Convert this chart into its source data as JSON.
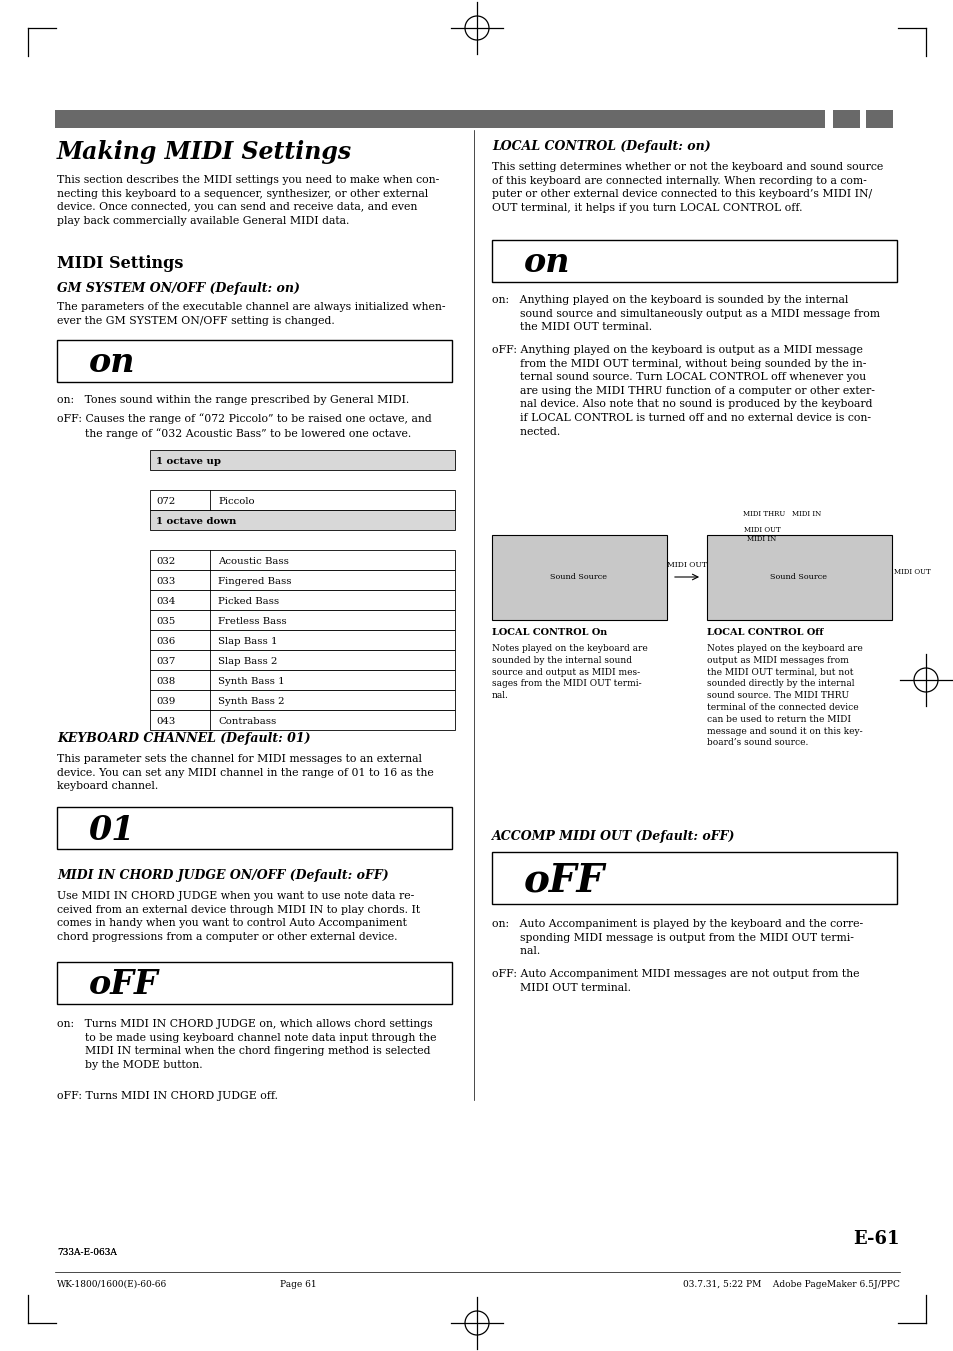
{
  "bg_color": "#ffffff",
  "page_width": 9.54,
  "page_height": 13.51,
  "header_bar_color": "#696969",
  "title": "Making MIDI Settings",
  "intro_text": "This section describes the MIDI settings you need to make when con-\nnecting this keyboard to a sequencer, synthesizer, or other external\ndevice. Once connected, you can send and receive data, and even\nplay back commercially available General MIDI data.",
  "section_title": "MIDI Settings",
  "subsection1_title": "GM SYSTEM ON/OFF (Default: on)",
  "subsection1_text": "The parameters of the executable channel are always initialized when-\never the GM SYSTEM ON/OFF setting is changed.",
  "display1_text": "on",
  "on_text1": "on:   Tones sound within the range prescribed by General MIDI.",
  "off_text1a": "oFF: Causes the range of “072 Piccolo” to be raised one octave, and",
  "off_text1b": "        the range of “032 Acoustic Bass” to be lowered one octave.",
  "table_header1": "1 octave up",
  "table_header2": "1 octave down",
  "table_rows_up": [
    [
      "072",
      "Piccolo"
    ]
  ],
  "table_rows_down": [
    [
      "032",
      "Acoustic Bass"
    ],
    [
      "033",
      "Fingered Bass"
    ],
    [
      "034",
      "Picked Bass"
    ],
    [
      "035",
      "Fretless Bass"
    ],
    [
      "036",
      "Slap Bass 1"
    ],
    [
      "037",
      "Slap Bass 2"
    ],
    [
      "038",
      "Synth Bass 1"
    ],
    [
      "039",
      "Synth Bass 2"
    ],
    [
      "043",
      "Contrabass"
    ]
  ],
  "subsection2_title": "KEYBOARD CHANNEL (Default: 01)",
  "subsection2_text": "This parameter sets the channel for MIDI messages to an external\ndevice. You can set any MIDI channel in the range of 01 to 16 as the\nkeyboard channel.",
  "display2_text": "01",
  "subsection3_title": "MIDI IN CHORD JUDGE ON/OFF (Default: oFF)",
  "subsection3_text": "Use MIDI IN CHORD JUDGE when you want to use note data re-\nceived from an external device through MIDI IN to play chords. It\ncomes in handy when you want to control Auto Accompaniment\nchord progressions from a computer or other external device.",
  "display3_text": "oFF",
  "on_text3": "on:   Turns MIDI IN CHORD JUDGE on, which allows chord settings\n        to be made using keyboard channel note data input through the\n        MIDI IN terminal when the chord fingering method is selected\n        by the MODE button.",
  "off_text3": "oFF: Turns MIDI IN CHORD JUDGE off.",
  "right_section1_title": "LOCAL CONTROL (Default: on)",
  "right_section1_text": "This setting determines whether or not the keyboard and sound source\nof this keyboard are connected internally. When recording to a com-\nputer or other external device connected to this keyboard’s MIDI IN/\nOUT terminal, it helps if you turn LOCAL CONTROL off.",
  "display_r1_text": "on",
  "right_on_text": "on:   Anything played on the keyboard is sounded by the internal\n        sound source and simultaneously output as a MIDI message from\n        the MIDI OUT terminal.",
  "right_off_text": "oFF: Anything played on the keyboard is output as a MIDI message\n        from the MIDI OUT terminal, without being sounded by the in-\n        ternal sound source. Turn LOCAL CONTROL off whenever you\n        are using the MIDI THRU function of a computer or other exter-\n        nal device. Also note that no sound is produced by the keyboard\n        if LOCAL CONTROL is turned off and no external device is con-\n        nected.",
  "local_on_label": "LOCAL CONTROL On",
  "local_on_text": "Notes played on the keyboard are\nsounded by the internal sound\nsource and output as MIDI mes-\nsages from the MIDI OUT termi-\nnal.",
  "local_off_label": "LOCAL CONTROL Off",
  "local_off_text": "Notes played on the keyboard are\noutput as MIDI messages from\nthe MIDI OUT terminal, but not\nsounded directly by the internal\nsound source. The MIDI THRU\nterminal of the connected device\ncan be used to return the MIDI\nmessage and sound it on this key-\nboard’s sound source.",
  "right_section2_title": "ACCOMP MIDI OUT (Default: oFF)",
  "display_r2_text": "oFF",
  "accomp_on_text": "on:   Auto Accompaniment is played by the keyboard and the corre-\n        sponding MIDI message is output from the MIDI OUT termi-\n        nal.",
  "accomp_off_text": "oFF: Auto Accompaniment MIDI messages are not output from the\n        MIDI OUT terminal.",
  "footer_page": "E-61",
  "footer_left": "733A-E-063A",
  "footer_center": "Page 61",
  "footer_right": "03.7.31, 5:22 PM    Adobe PageMaker 6.5J/PPC",
  "footer_product": "WK-1800/1600(E)-60-66"
}
